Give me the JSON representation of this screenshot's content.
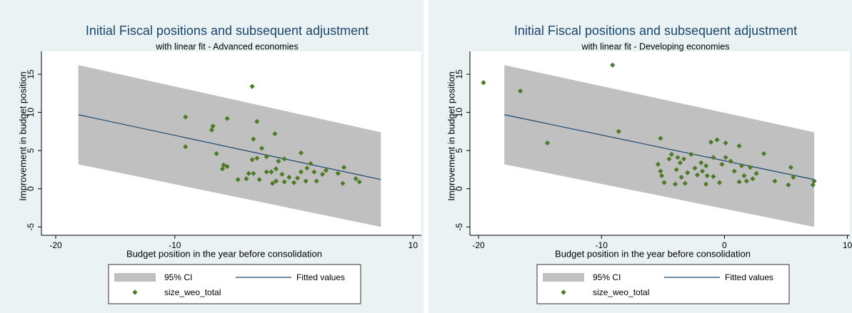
{
  "chart_data": [
    {
      "type": "scatter",
      "title": "Initial Fiscal positions and subsequent adjustment",
      "subtitle": "with linear fit - Advanced economies",
      "xlabel": "Budget position in the year before consolidation",
      "ylabel": "Improvement in budget position",
      "xlim": [
        -21.2,
        10.7
      ],
      "ylim": [
        -6.1,
        18
      ],
      "xticks": [
        -20,
        -10,
        10
      ],
      "yticks": [
        -5,
        0,
        5,
        10,
        15
      ],
      "series": [
        {
          "name": "95% CI",
          "color": "#c0c0c0",
          "x": [
            -18.1,
            7.3
          ],
          "lower": [
            3.2,
            -5.0
          ],
          "upper": [
            16.2,
            7.4
          ]
        },
        {
          "name": "Fitted values",
          "color": "#1a476f",
          "x": [
            -18.1,
            7.3
          ],
          "values": [
            9.7,
            1.2
          ]
        },
        {
          "name": "size_weo_total",
          "color": "#4f7a28",
          "x": [
            -3.5,
            -9.1,
            -5.6,
            -9.1,
            -6.8,
            -6.9,
            -3.1,
            -3.4,
            -1.6,
            -6.5,
            -5.9,
            -6.0,
            -5.6,
            -2.7,
            -3.5,
            -3.1,
            -2.3,
            -3.8,
            -3.4,
            -4.7,
            -4.0,
            -2.9,
            -1.5,
            -1.3,
            -0.8,
            -1.9,
            -1.0,
            -1.8,
            -1.5,
            -0.4,
            0.3,
            0.6,
            0.6,
            1.1,
            1.4,
            1.7,
            2.4,
            2.7,
            3.7,
            4.2,
            4.1,
            5.2,
            5.5,
            1.9,
            1.0,
            0.0,
            -0.8,
            -2.3
          ],
          "values": [
            13.4,
            9.4,
            9.2,
            5.5,
            8.2,
            7.7,
            8.8,
            6.5,
            7.2,
            4.6,
            3.1,
            2.6,
            2.9,
            5.3,
            3.8,
            4.0,
            4.2,
            2.0,
            2.0,
            1.2,
            1.3,
            1.2,
            2.6,
            3.6,
            3.9,
            2.2,
            1.9,
            0.7,
            1.0,
            1.5,
            1.4,
            4.7,
            2.2,
            2.7,
            3.3,
            2.2,
            1.9,
            2.4,
            2.0,
            2.8,
            0.7,
            1.3,
            0.9,
            1.0,
            1.0,
            0.8,
            0.9,
            2.2
          ]
        }
      ]
    },
    {
      "type": "scatter",
      "title": "Initial Fiscal positions and subsequent adjustment",
      "subtitle": "with linear fit - Developing economies",
      "xlabel": "Budget position in the year before consolidation",
      "ylabel": "Improvement in budget position",
      "xlim": [
        -20.7,
        10.2
      ],
      "ylim": [
        -6.1,
        18
      ],
      "xticks": [
        -20,
        -10,
        0,
        10
      ],
      "yticks": [
        -5,
        0,
        5,
        10,
        15
      ],
      "series": [
        {
          "name": "95% CI",
          "color": "#c0c0c0",
          "x": [
            -17.9,
            7.3
          ],
          "lower": [
            3.2,
            -5.0
          ],
          "upper": [
            16.2,
            7.4
          ]
        },
        {
          "name": "Fitted values",
          "color": "#1a476f",
          "x": [
            -17.9,
            7.3
          ],
          "values": [
            9.7,
            1.2
          ]
        },
        {
          "name": "size_weo_total",
          "color": "#4f7a28",
          "x": [
            -19.6,
            -16.6,
            -9.1,
            -14.4,
            -8.6,
            -5.2,
            -5.4,
            -5.2,
            -5.1,
            -4.9,
            -4.5,
            -4.3,
            -3.8,
            -3.9,
            -3.6,
            -3.3,
            -4.0,
            -3.2,
            -2.7,
            -2.4,
            -2.2,
            -1.9,
            -1.8,
            -1.5,
            -1.4,
            -0.9,
            -0.9,
            -1.1,
            -0.6,
            0.1,
            0.1,
            0.5,
            0.8,
            1.2,
            1.4,
            1.6,
            2.1,
            2.3,
            2.6,
            3.2,
            4.1,
            5.4,
            5.6,
            5.2,
            7.3,
            7.2,
            -0.4,
            -1.5,
            1.2,
            1.8,
            -3.0,
            -3.5,
            -0.2
          ],
          "values": [
            13.9,
            12.8,
            16.2,
            6.0,
            7.5,
            6.6,
            3.2,
            2.3,
            1.7,
            0.8,
            3.9,
            4.5,
            4.1,
            2.5,
            3.4,
            3.9,
            0.6,
            0.7,
            4.5,
            2.7,
            1.8,
            3.4,
            2.3,
            3.0,
            1.7,
            1.6,
            4.1,
            6.1,
            6.4,
            6.0,
            4.1,
            3.6,
            2.3,
            5.6,
            3.0,
            1.7,
            2.8,
            1.3,
            2.0,
            4.6,
            1.0,
            2.8,
            1.5,
            0.5,
            1.0,
            0.5,
            0.8,
            0.6,
            0.9,
            1.0,
            2.1,
            1.5,
            3.2
          ]
        }
      ]
    }
  ]
}
